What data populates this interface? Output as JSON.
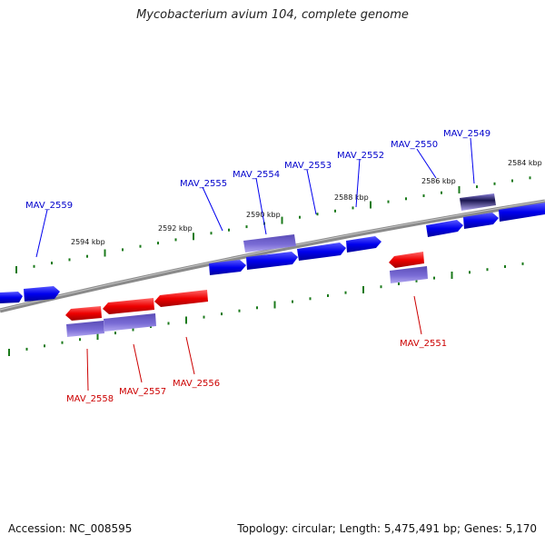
{
  "title": "Mycobacterium avium 104, complete genome",
  "footer": {
    "accession": "Accession: NC_008595",
    "topology": "Topology: circular; Length: 5,475,491 bp; Genes: 5,170"
  },
  "colors": {
    "forward": "#0000ee",
    "reverse": "#ee0000",
    "feature": "#7a6cd6",
    "backbone": "#8a8a8a",
    "ticks": "#1b7a1b"
  },
  "kbp_labels": [
    "2594 kbp",
    "2592 kbp",
    "2590 kbp",
    "2588 kbp",
    "2586 kbp",
    "2584 kbp"
  ],
  "forward_genes": [
    "MAV_2559",
    "MAV_2555",
    "MAV_2554",
    "MAV_2553",
    "MAV_2552",
    "MAV_2550",
    "MAV_2549"
  ],
  "reverse_genes": [
    "MAV_2558",
    "MAV_2557",
    "MAV_2556",
    "MAV_2551"
  ]
}
